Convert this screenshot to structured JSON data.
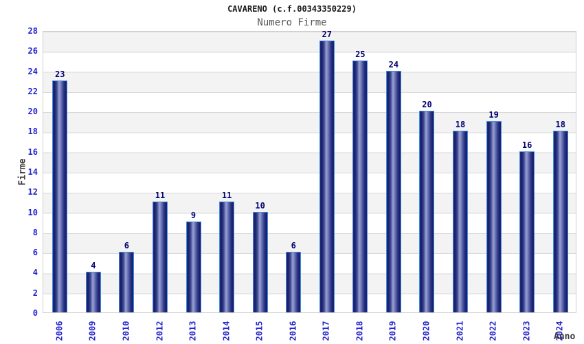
{
  "title": "CAVARENO (c.f.00343350229)",
  "subtitle": "Numero Firme",
  "chart_data": {
    "type": "bar",
    "title": "CAVARENO (c.f.00343350229)",
    "subtitle": "Numero Firme",
    "xlabel": "Anno",
    "ylabel": "Firme",
    "categories": [
      "2006",
      "2009",
      "2010",
      "2012",
      "2013",
      "2014",
      "2015",
      "2016",
      "2017",
      "2018",
      "2019",
      "2020",
      "2021",
      "2022",
      "2023",
      "2024"
    ],
    "values": [
      23,
      4,
      6,
      11,
      9,
      11,
      10,
      6,
      27,
      25,
      24,
      20,
      18,
      19,
      16,
      18
    ],
    "ylim": [
      0,
      28
    ],
    "ytick_step": 2,
    "grid": "horizontal-bands-alternating",
    "legend": "none",
    "colors": {
      "bar_edge": "#3f8fdf",
      "bar_dark": "#161c66",
      "bar_highlight": "#99a2d6",
      "tick_label": "#2626cf",
      "value_label": "#000070",
      "band_gray": "#f3f3f3",
      "band_white": "#ffffff",
      "grid_line": "#dadada",
      "title_color": "#1a1a1a",
      "subtitle_color": "#5a5a5a",
      "axis_name_color": "#3a3a3a"
    }
  }
}
